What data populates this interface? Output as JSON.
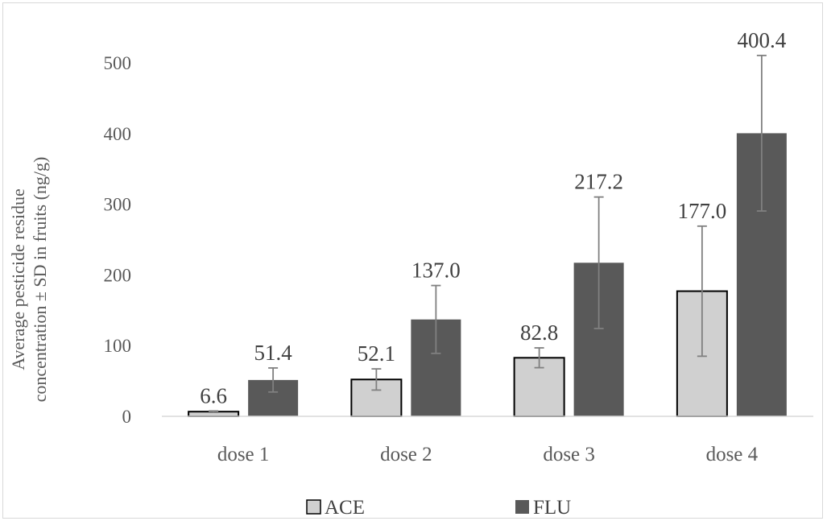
{
  "chart_data": {
    "type": "bar",
    "title": "",
    "xlabel": "",
    "ylabel_lines": [
      "Average pesticide residue",
      "concentration ± SD  in fruits (ng/g)"
    ],
    "categories": [
      "dose 1",
      "dose 2",
      "dose 3",
      "dose 4"
    ],
    "ylim": [
      0,
      500
    ],
    "yticks": [
      0,
      100,
      200,
      300,
      400,
      500
    ],
    "grid": false,
    "legend_position": "bottom",
    "series": [
      {
        "name": "ACE",
        "color": "#d0d0d0",
        "values": [
          6.6,
          52.1,
          82.8,
          177.0
        ],
        "sd": [
          1,
          15,
          14,
          92
        ],
        "labels": [
          "6.6",
          "52.1",
          "82.8",
          "177.0"
        ]
      },
      {
        "name": "FLU",
        "color": "#595959",
        "values": [
          51.4,
          137.0,
          217.2,
          400.4
        ],
        "sd": [
          17,
          48,
          93,
          110
        ],
        "labels": [
          "51.4",
          "137.0",
          "217.2",
          "400.4"
        ]
      }
    ]
  }
}
